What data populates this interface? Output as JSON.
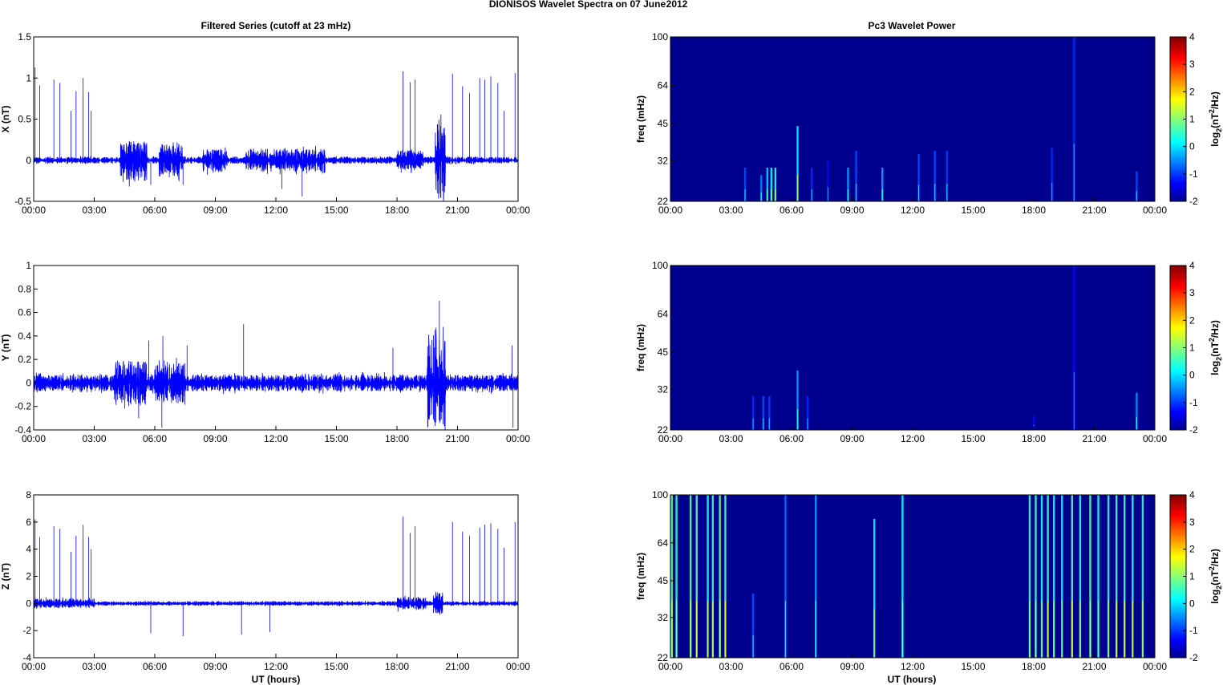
{
  "figure": {
    "title_left": "DIONISOS Wavelet Spectra on 07 June",
    "title_right": "2012",
    "left_column_title": "Filtered Series (cutoff at 23 mHz)",
    "right_column_title": "Pc3 Wavelet Power",
    "xlabel": "UT (hours)",
    "spectrum_ylabel": "freq (mHz)",
    "colorbar_label_pre": "log",
    "colorbar_label_sub": "2",
    "colorbar_label_mid": "(nT",
    "colorbar_label_sup": "2",
    "colorbar_label_post": "/Hz)",
    "time_ticks": [
      "00:00",
      "03:00",
      "06:00",
      "09:00",
      "12:00",
      "15:00",
      "18:00",
      "21:00",
      "00:00"
    ],
    "line_color": "#0000ff",
    "background_color": "#00008f",
    "colormap": "jet"
  },
  "chart_data": [
    {
      "type": "line",
      "component": "X",
      "ylabel": "X (nT)",
      "ylim": [
        -0.5,
        1.5
      ],
      "yticks": [
        -0.5,
        0,
        0.5,
        1,
        1.5
      ],
      "ytick_labels": [
        "-0.5",
        "0",
        "0.5",
        "1",
        "1.5"
      ],
      "xlim_hours": [
        0,
        24
      ],
      "noise_amplitude": 0.04,
      "activity": [
        {
          "t": [
            4.3,
            5.6
          ],
          "amp": 0.2
        },
        {
          "t": [
            6.2,
            7.4
          ],
          "amp": 0.16
        },
        {
          "t": [
            8.4,
            9.6
          ],
          "amp": 0.1
        },
        {
          "t": [
            10.5,
            14.5
          ],
          "amp": 0.1
        },
        {
          "t": [
            18.0,
            19.3
          ],
          "amp": 0.08
        },
        {
          "t": [
            19.9,
            20.4
          ],
          "amp": 0.45
        }
      ],
      "spikes": [
        {
          "t": 0.07,
          "v": 1.13
        },
        {
          "t": 0.3,
          "v": 0.91
        },
        {
          "t": 1.0,
          "v": 0.98
        },
        {
          "t": 1.3,
          "v": 0.94
        },
        {
          "t": 1.85,
          "v": 0.6
        },
        {
          "t": 2.1,
          "v": 0.84
        },
        {
          "t": 2.45,
          "v": 1.0
        },
        {
          "t": 2.72,
          "v": 0.83
        },
        {
          "t": 2.85,
          "v": 0.6
        },
        {
          "t": 18.3,
          "v": 1.08
        },
        {
          "t": 18.65,
          "v": 0.95
        },
        {
          "t": 18.9,
          "v": 0.98
        },
        {
          "t": 20.75,
          "v": 1.05
        },
        {
          "t": 21.25,
          "v": 0.9
        },
        {
          "t": 21.6,
          "v": 0.82
        },
        {
          "t": 22.1,
          "v": 1.0
        },
        {
          "t": 22.35,
          "v": 0.98
        },
        {
          "t": 22.65,
          "v": 1.02
        },
        {
          "t": 23.0,
          "v": 0.94
        },
        {
          "t": 23.3,
          "v": 0.6
        },
        {
          "t": 23.85,
          "v": 1.06
        },
        {
          "t": 5.8,
          "v": -0.3
        },
        {
          "t": 7.4,
          "v": -0.3
        },
        {
          "t": 12.3,
          "v": -0.35
        },
        {
          "t": 13.3,
          "v": -0.44
        },
        {
          "t": 20.1,
          "v": -0.3
        }
      ]
    },
    {
      "type": "line",
      "component": "Y",
      "ylabel": "Y (nT)",
      "ylim": [
        -0.4,
        1
      ],
      "yticks": [
        -0.4,
        -0.2,
        0,
        0.2,
        0.4,
        0.6,
        0.8,
        1
      ],
      "ytick_labels": [
        "-0.4",
        "-0.2",
        "0",
        "0.2",
        "0.4",
        "0.6",
        "0.8",
        "1"
      ],
      "xlim_hours": [
        0,
        24
      ],
      "noise_amplitude": 0.07,
      "activity": [
        {
          "t": [
            4.0,
            5.6
          ],
          "amp": 0.12
        },
        {
          "t": [
            6.0,
            7.5
          ],
          "amp": 0.1
        },
        {
          "t": [
            19.5,
            20.4
          ],
          "amp": 0.3
        }
      ],
      "spikes": [
        {
          "t": 5.7,
          "v": 0.36
        },
        {
          "t": 6.4,
          "v": 0.4
        },
        {
          "t": 7.6,
          "v": 0.32
        },
        {
          "t": 10.4,
          "v": 0.5
        },
        {
          "t": 17.8,
          "v": 0.3
        },
        {
          "t": 20.1,
          "v": 0.7
        },
        {
          "t": 23.7,
          "v": 0.32
        },
        {
          "t": 6.35,
          "v": -0.38
        },
        {
          "t": 23.75,
          "v": -0.38
        },
        {
          "t": 5.2,
          "v": -0.3
        }
      ]
    },
    {
      "type": "line",
      "component": "Z",
      "ylabel": "Z (nT)",
      "ylim": [
        -4,
        8
      ],
      "yticks": [
        -4,
        -2,
        0,
        2,
        4,
        6,
        8
      ],
      "ytick_labels": [
        "-4",
        "-2",
        "0",
        "2",
        "4",
        "6",
        "8"
      ],
      "xlim_hours": [
        0,
        24
      ],
      "noise_amplitude": 0.15,
      "activity": [
        {
          "t": [
            18.0,
            19.5
          ],
          "amp": 0.3
        },
        {
          "t": [
            19.8,
            20.3
          ],
          "amp": 0.6
        },
        {
          "t": [
            0.0,
            3.0
          ],
          "amp": 0.2
        }
      ],
      "spikes": [
        {
          "t": 0.07,
          "v": 6.2
        },
        {
          "t": 0.3,
          "v": 4.9
        },
        {
          "t": 1.0,
          "v": 5.7
        },
        {
          "t": 1.3,
          "v": 5.5
        },
        {
          "t": 1.85,
          "v": 3.8
        },
        {
          "t": 2.1,
          "v": 5.0
        },
        {
          "t": 2.45,
          "v": 5.8
        },
        {
          "t": 2.72,
          "v": 4.9
        },
        {
          "t": 2.85,
          "v": 4.0
        },
        {
          "t": 18.3,
          "v": 6.4
        },
        {
          "t": 18.65,
          "v": 5.2
        },
        {
          "t": 18.9,
          "v": 5.7
        },
        {
          "t": 20.75,
          "v": 6.0
        },
        {
          "t": 21.25,
          "v": 5.3
        },
        {
          "t": 21.6,
          "v": 5.0
        },
        {
          "t": 22.1,
          "v": 5.6
        },
        {
          "t": 22.35,
          "v": 5.8
        },
        {
          "t": 22.65,
          "v": 5.9
        },
        {
          "t": 23.0,
          "v": 5.5
        },
        {
          "t": 23.3,
          "v": 4.1
        },
        {
          "t": 23.85,
          "v": 6.0
        },
        {
          "t": 5.8,
          "v": -2.2
        },
        {
          "t": 7.4,
          "v": -2.4
        },
        {
          "t": 10.3,
          "v": -2.3
        },
        {
          "t": 11.7,
          "v": -2.1
        }
      ]
    },
    {
      "type": "heatmap",
      "component": "X",
      "ylabel": "freq (mHz)",
      "yscale": "log",
      "ylim": [
        22,
        100
      ],
      "yticks": [
        22,
        32,
        45,
        64,
        100
      ],
      "xlim_hours": [
        0,
        24
      ],
      "colorbar_range": [
        -2,
        4
      ],
      "colorbar_ticks": [
        -2,
        -1,
        0,
        1,
        2,
        3,
        4
      ],
      "background_level": -2,
      "streaks": [
        {
          "t": 3.7,
          "f": 30,
          "level": -0.8
        },
        {
          "t": 4.5,
          "f": 28,
          "level": -0.5
        },
        {
          "t": 4.8,
          "f": 30,
          "level": 0.0
        },
        {
          "t": 5.0,
          "f": 30,
          "level": 0.3
        },
        {
          "t": 5.2,
          "f": 30,
          "level": 0.5
        },
        {
          "t": 6.3,
          "f": 44,
          "level": 0.2
        },
        {
          "t": 7.0,
          "f": 30,
          "level": -1.0
        },
        {
          "t": 7.8,
          "f": 32,
          "level": -1.2
        },
        {
          "t": 8.8,
          "f": 30,
          "level": -0.3
        },
        {
          "t": 9.2,
          "f": 35,
          "level": -0.8
        },
        {
          "t": 10.5,
          "f": 30,
          "level": -0.3
        },
        {
          "t": 12.3,
          "f": 34,
          "level": -0.8
        },
        {
          "t": 13.1,
          "f": 35,
          "level": -0.8
        },
        {
          "t": 13.7,
          "f": 35,
          "level": -0.9
        },
        {
          "t": 18.9,
          "f": 36,
          "level": -1.0
        },
        {
          "t": 20.0,
          "f": 100,
          "level": -1.0
        },
        {
          "t": 23.1,
          "f": 29,
          "level": -0.8
        }
      ]
    },
    {
      "type": "heatmap",
      "component": "Y",
      "ylabel": "freq (mHz)",
      "yscale": "log",
      "ylim": [
        22,
        100
      ],
      "yticks": [
        22,
        32,
        45,
        64,
        100
      ],
      "xlim_hours": [
        0,
        24
      ],
      "colorbar_range": [
        -2,
        4
      ],
      "colorbar_ticks": [
        -2,
        -1,
        0,
        1,
        2,
        3,
        4
      ],
      "background_level": -2,
      "streaks": [
        {
          "t": 4.1,
          "f": 30,
          "level": -1.0
        },
        {
          "t": 4.6,
          "f": 30,
          "level": -0.8
        },
        {
          "t": 4.9,
          "f": 30,
          "level": -0.9
        },
        {
          "t": 6.3,
          "f": 38,
          "level": -0.3
        },
        {
          "t": 6.8,
          "f": 30,
          "level": -1.0
        },
        {
          "t": 18.0,
          "f": 25,
          "level": -1.2
        },
        {
          "t": 20.0,
          "f": 100,
          "level": -1.2
        },
        {
          "t": 23.1,
          "f": 31,
          "level": -0.4
        }
      ]
    },
    {
      "type": "heatmap",
      "component": "Z",
      "ylabel": "freq (mHz)",
      "yscale": "log",
      "ylim": [
        22,
        100
      ],
      "yticks": [
        22,
        32,
        45,
        64,
        100
      ],
      "xlim_hours": [
        0,
        24
      ],
      "colorbar_range": [
        -2,
        4
      ],
      "colorbar_ticks": [
        -2,
        -1,
        0,
        1,
        2,
        3,
        4
      ],
      "background_level": -2,
      "streaks": [
        {
          "t": 0.07,
          "f": 100,
          "level": 0.8
        },
        {
          "t": 0.3,
          "f": 100,
          "level": 0.6
        },
        {
          "t": 1.0,
          "f": 100,
          "level": 0.8
        },
        {
          "t": 1.3,
          "f": 100,
          "level": 0.8
        },
        {
          "t": 1.85,
          "f": 100,
          "level": 0.4
        },
        {
          "t": 2.1,
          "f": 100,
          "level": 0.7
        },
        {
          "t": 2.45,
          "f": 100,
          "level": 0.9
        },
        {
          "t": 2.72,
          "f": 100,
          "level": 0.7
        },
        {
          "t": 4.1,
          "f": 40,
          "level": -0.8
        },
        {
          "t": 5.7,
          "f": 100,
          "level": -0.6
        },
        {
          "t": 7.2,
          "f": 100,
          "level": -0.3
        },
        {
          "t": 10.1,
          "f": 80,
          "level": 0.2
        },
        {
          "t": 11.5,
          "f": 100,
          "level": 0.3
        },
        {
          "t": 17.8,
          "f": 100,
          "level": 0.6
        },
        {
          "t": 18.1,
          "f": 100,
          "level": 0.6
        },
        {
          "t": 18.4,
          "f": 100,
          "level": 0.4
        },
        {
          "t": 18.7,
          "f": 100,
          "level": 0.6
        },
        {
          "t": 19.0,
          "f": 100,
          "level": 0.4
        },
        {
          "t": 19.4,
          "f": 100,
          "level": 0.2
        },
        {
          "t": 19.9,
          "f": 100,
          "level": 0.8
        },
        {
          "t": 20.3,
          "f": 100,
          "level": 0.5
        },
        {
          "t": 20.8,
          "f": 100,
          "level": 0.8
        },
        {
          "t": 21.2,
          "f": 100,
          "level": 0.4
        },
        {
          "t": 21.7,
          "f": 100,
          "level": 0.5
        },
        {
          "t": 22.1,
          "f": 100,
          "level": 0.7
        },
        {
          "t": 22.5,
          "f": 100,
          "level": 0.7
        },
        {
          "t": 22.9,
          "f": 100,
          "level": 0.5
        },
        {
          "t": 23.4,
          "f": 100,
          "level": 0.6
        }
      ]
    }
  ]
}
